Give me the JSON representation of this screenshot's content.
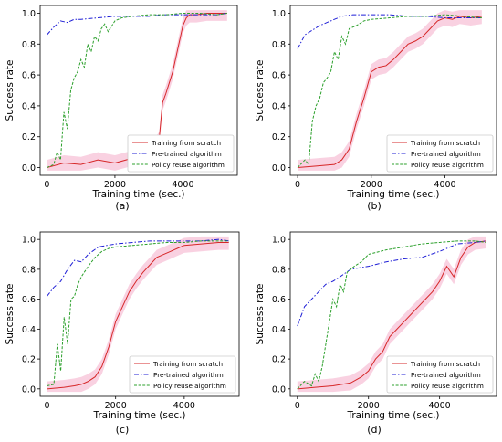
{
  "legend_labels": [
    "Training from scratch",
    "Pre-trained algorithm",
    "Policy reuse algorithm"
  ],
  "colors": {
    "scratch": "#d62728",
    "scratch_band": "#f7c6d9",
    "pretrained": "#1f1fd6",
    "reuse": "#2ca02c"
  },
  "chart_data": [
    {
      "type": "line",
      "caption": "(a)",
      "xlabel": "Training time (sec.)",
      "ylabel": "Success rate",
      "xlim": [
        -200,
        5600
      ],
      "ylim": [
        -0.05,
        1.05
      ],
      "xticks": [
        0,
        2000,
        4000
      ],
      "yticks": [
        0.0,
        0.2,
        0.4,
        0.6,
        0.8,
        1.0
      ],
      "legend_position": "lower-right",
      "series": [
        {
          "key": "scratch",
          "name": "Training from scratch",
          "style": "solid",
          "x": [
            0,
            500,
            1000,
            1500,
            2000,
            2500,
            2900,
            3100,
            3300,
            3400,
            3500,
            3600,
            3700,
            3800,
            3900,
            4000,
            4100,
            4200,
            4400,
            4700,
            5000,
            5300
          ],
          "y": [
            0.0,
            0.03,
            0.02,
            0.05,
            0.03,
            0.06,
            0.1,
            0.12,
            0.18,
            0.42,
            0.48,
            0.55,
            0.62,
            0.72,
            0.82,
            0.92,
            0.97,
            0.99,
            0.99,
            1.0,
            1.0,
            1.0
          ]
        },
        {
          "key": "pretrained",
          "name": "Pre-trained algorithm",
          "style": "dashdot",
          "x": [
            0,
            200,
            400,
            600,
            800,
            1000,
            1500,
            2000,
            2500,
            3000,
            3500,
            4000,
            4500,
            5000,
            5300
          ],
          "y": [
            0.86,
            0.91,
            0.95,
            0.94,
            0.96,
            0.96,
            0.97,
            0.98,
            0.98,
            0.98,
            0.99,
            0.99,
            0.99,
            0.99,
            1.0
          ]
        },
        {
          "key": "reuse",
          "name": "Policy reuse algorithm",
          "style": "dashed",
          "x": [
            0,
            200,
            300,
            400,
            500,
            600,
            700,
            800,
            900,
            1000,
            1100,
            1200,
            1300,
            1400,
            1500,
            1600,
            1700,
            1800,
            2000,
            2200,
            2500,
            3000,
            3500,
            4000,
            4500,
            5000,
            5300
          ],
          "y": [
            0.0,
            0.02,
            0.1,
            0.05,
            0.36,
            0.25,
            0.5,
            0.58,
            0.62,
            0.7,
            0.65,
            0.8,
            0.75,
            0.85,
            0.82,
            0.9,
            0.93,
            0.88,
            0.95,
            0.97,
            0.98,
            0.99,
            0.99,
            1.0,
            1.0,
            0.99,
            1.0
          ]
        }
      ]
    },
    {
      "type": "line",
      "caption": "(b)",
      "xlabel": "Training time (sec.)",
      "ylabel": "Success rate",
      "xlim": [
        -200,
        5400
      ],
      "ylim": [
        -0.05,
        1.05
      ],
      "xticks": [
        0,
        2000,
        4000
      ],
      "yticks": [
        0.0,
        0.2,
        0.4,
        0.6,
        0.8,
        1.0
      ],
      "legend_position": "lower-right",
      "series": [
        {
          "key": "scratch",
          "name": "Training from scratch",
          "style": "solid",
          "x": [
            0,
            500,
            1000,
            1200,
            1400,
            1600,
            1800,
            2000,
            2200,
            2400,
            2600,
            2800,
            3000,
            3200,
            3400,
            3600,
            3800,
            4000,
            4200,
            4400,
            4700,
            5000
          ],
          "y": [
            0.0,
            0.01,
            0.02,
            0.05,
            0.12,
            0.3,
            0.45,
            0.62,
            0.65,
            0.66,
            0.7,
            0.75,
            0.8,
            0.82,
            0.85,
            0.9,
            0.95,
            0.97,
            0.96,
            0.98,
            0.97,
            0.98
          ]
        },
        {
          "key": "pretrained",
          "name": "Pre-trained algorithm",
          "style": "dashdot",
          "x": [
            0,
            200,
            400,
            600,
            800,
            1000,
            1200,
            1500,
            2000,
            2500,
            3000,
            3500,
            4000,
            4500,
            5000
          ],
          "y": [
            0.77,
            0.86,
            0.89,
            0.92,
            0.94,
            0.96,
            0.98,
            0.99,
            0.99,
            0.99,
            0.98,
            0.98,
            0.97,
            0.97,
            0.97
          ]
        },
        {
          "key": "reuse",
          "name": "Policy reuse algorithm",
          "style": "dashed",
          "x": [
            0,
            200,
            300,
            400,
            500,
            600,
            700,
            800,
            900,
            1000,
            1100,
            1200,
            1300,
            1400,
            1600,
            1800,
            2000,
            2500,
            3000,
            3500,
            4000,
            4500,
            5000
          ],
          "y": [
            0.0,
            0.05,
            0.02,
            0.3,
            0.4,
            0.45,
            0.55,
            0.58,
            0.62,
            0.75,
            0.7,
            0.85,
            0.8,
            0.9,
            0.92,
            0.95,
            0.96,
            0.97,
            0.98,
            0.98,
            0.99,
            0.98,
            0.97
          ]
        }
      ]
    },
    {
      "type": "line",
      "caption": "(c)",
      "xlabel": "Training time (sec.)",
      "ylabel": "Success rate",
      "xlim": [
        -200,
        5600
      ],
      "ylim": [
        -0.05,
        1.05
      ],
      "xticks": [
        0,
        2000,
        4000
      ],
      "yticks": [
        0.0,
        0.2,
        0.4,
        0.6,
        0.8,
        1.0
      ],
      "legend_position": "lower-right",
      "series": [
        {
          "key": "scratch",
          "name": "Training from scratch",
          "style": "solid",
          "x": [
            0,
            500,
            800,
            1000,
            1200,
            1400,
            1600,
            1800,
            2000,
            2200,
            2400,
            2600,
            2800,
            3000,
            3200,
            3400,
            3600,
            3800,
            4000,
            4500,
            5000,
            5300
          ],
          "y": [
            0.0,
            0.01,
            0.02,
            0.03,
            0.05,
            0.08,
            0.15,
            0.28,
            0.45,
            0.55,
            0.65,
            0.72,
            0.78,
            0.83,
            0.88,
            0.9,
            0.92,
            0.94,
            0.96,
            0.97,
            0.98,
            0.98
          ]
        },
        {
          "key": "pretrained",
          "name": "Pre-trained algorithm",
          "style": "dashdot",
          "x": [
            0,
            200,
            400,
            600,
            800,
            1000,
            1200,
            1500,
            2000,
            2500,
            3000,
            3500,
            4000,
            4500,
            5000,
            5300
          ],
          "y": [
            0.62,
            0.68,
            0.72,
            0.8,
            0.86,
            0.85,
            0.9,
            0.95,
            0.97,
            0.98,
            0.99,
            0.99,
            0.99,
            0.99,
            1.0,
            0.99
          ]
        },
        {
          "key": "reuse",
          "name": "Policy reuse algorithm",
          "style": "dashed",
          "x": [
            0,
            200,
            300,
            400,
            500,
            600,
            700,
            800,
            900,
            1000,
            1200,
            1400,
            1600,
            1800,
            2000,
            2500,
            3000,
            3500,
            4000,
            4500,
            5000,
            5300
          ],
          "y": [
            0.02,
            0.03,
            0.3,
            0.12,
            0.48,
            0.3,
            0.6,
            0.62,
            0.7,
            0.75,
            0.82,
            0.88,
            0.92,
            0.94,
            0.95,
            0.96,
            0.97,
            0.98,
            0.98,
            0.99,
            0.99,
            0.99
          ]
        }
      ]
    },
    {
      "type": "line",
      "caption": "(d)",
      "xlabel": "Training time (sec.)",
      "ylabel": "Success rate",
      "xlim": [
        -200,
        5600
      ],
      "ylim": [
        -0.05,
        1.05
      ],
      "xticks": [
        0,
        2000,
        4000
      ],
      "yticks": [
        0.0,
        0.2,
        0.4,
        0.6,
        0.8,
        1.0
      ],
      "legend_position": "lower-right",
      "series": [
        {
          "key": "scratch",
          "name": "Training from scratch",
          "style": "solid",
          "x": [
            0,
            500,
            1000,
            1500,
            1800,
            2000,
            2200,
            2400,
            2600,
            2800,
            3000,
            3200,
            3400,
            3600,
            3800,
            4000,
            4200,
            4400,
            4600,
            4800,
            5000,
            5300
          ],
          "y": [
            0.0,
            0.01,
            0.02,
            0.04,
            0.08,
            0.12,
            0.2,
            0.25,
            0.35,
            0.4,
            0.45,
            0.5,
            0.55,
            0.6,
            0.65,
            0.72,
            0.82,
            0.75,
            0.88,
            0.95,
            0.98,
            0.99
          ]
        },
        {
          "key": "pretrained",
          "name": "Pre-trained algorithm",
          "style": "dashdot",
          "x": [
            0,
            200,
            400,
            600,
            800,
            1000,
            1200,
            1500,
            2000,
            2500,
            3000,
            3500,
            4000,
            4500,
            5000,
            5300
          ],
          "y": [
            0.42,
            0.55,
            0.6,
            0.65,
            0.7,
            0.72,
            0.75,
            0.8,
            0.82,
            0.85,
            0.87,
            0.88,
            0.92,
            0.97,
            0.98,
            0.99
          ]
        },
        {
          "key": "reuse",
          "name": "Policy reuse algorithm",
          "style": "dashed",
          "x": [
            0,
            200,
            400,
            500,
            600,
            700,
            800,
            900,
            1000,
            1100,
            1200,
            1300,
            1400,
            1600,
            1800,
            2000,
            2500,
            3000,
            3500,
            4000,
            4500,
            5000,
            5300
          ],
          "y": [
            0.0,
            0.05,
            0.02,
            0.1,
            0.05,
            0.15,
            0.3,
            0.45,
            0.6,
            0.55,
            0.7,
            0.65,
            0.78,
            0.82,
            0.85,
            0.9,
            0.93,
            0.95,
            0.97,
            0.98,
            0.99,
            0.99,
            0.98
          ]
        }
      ]
    }
  ]
}
